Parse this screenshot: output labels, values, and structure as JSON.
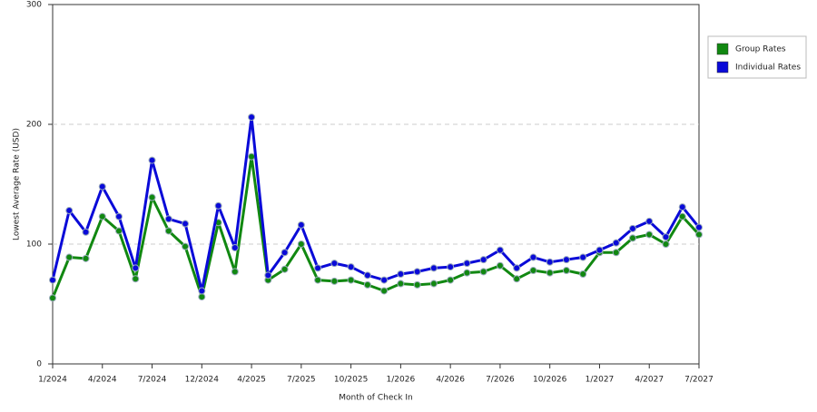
{
  "chart_data": {
    "type": "line",
    "x_label": "Month of Check In",
    "y_label": "Lowest Average Rate (USD)",
    "categories": [
      "1/2024",
      null,
      null,
      "4/2024",
      null,
      null,
      "7/2024",
      null,
      null,
      "12/2024",
      null,
      null,
      "4/2025",
      null,
      null,
      "7/2025",
      null,
      null,
      "10/2025",
      null,
      null,
      "1/2026",
      null,
      null,
      "4/2026",
      null,
      null,
      "7/2026",
      null,
      null,
      "10/2026",
      null,
      null,
      "1/2027",
      null,
      null,
      "4/2027",
      null,
      null,
      "7/2027"
    ],
    "series": [
      {
        "name": "Group Rates",
        "color": "#118811",
        "values": [
          55,
          89,
          88,
          123,
          111,
          71,
          139,
          111,
          98,
          56,
          118,
          77,
          173,
          70,
          79,
          100,
          70,
          69,
          70,
          66,
          61,
          67,
          66,
          67,
          70,
          76,
          77,
          82,
          71,
          78,
          76,
          78,
          75,
          93,
          93,
          105,
          108,
          100,
          123,
          108
        ]
      },
      {
        "name": "Individual Rates",
        "color": "#0a0ad8",
        "values": [
          70,
          128,
          110,
          148,
          123,
          80,
          170,
          121,
          117,
          61,
          132,
          97,
          206,
          74,
          93,
          116,
          80,
          84,
          81,
          74,
          70,
          75,
          77,
          80,
          81,
          84,
          87,
          95,
          80,
          89,
          85,
          87,
          89,
          95,
          101,
          113,
          119,
          106,
          131,
          114
        ]
      }
    ],
    "ylim": [
      0,
      300
    ],
    "yticks": [
      0,
      100,
      200,
      300
    ],
    "grid": true,
    "legend": "right"
  }
}
